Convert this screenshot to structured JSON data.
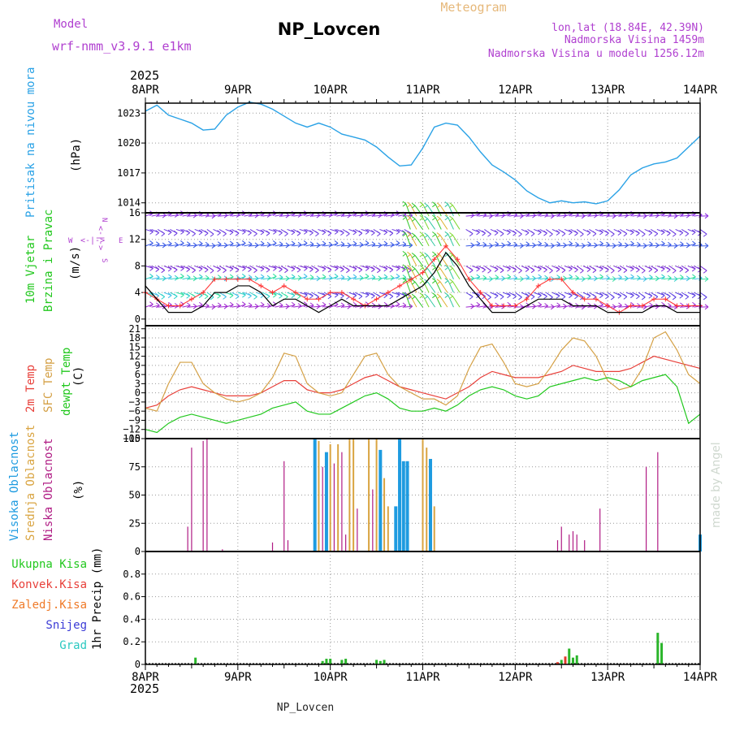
{
  "header": {
    "model_label": "Model",
    "model_name": "wrf-nmm_v3.9.1 e1km",
    "station": "NP_Lovcen",
    "meteogram": "Meteogram",
    "lonlat": "lon,lat (18.84E, 42.39N)",
    "altitude": "Nadmorska Visina 1459m",
    "model_altitude": "Nadmorska Visina u modelu 1256.12m",
    "footer_station": "NP_Lovcen",
    "watermark": "made by Angel"
  },
  "time_axis": {
    "year": "2025",
    "days": [
      "8APR",
      "9APR",
      "10APR",
      "11APR",
      "12APR",
      "13APR",
      "14APR"
    ],
    "hours_total": 144
  },
  "colors": {
    "pressure": "#2aa2e6",
    "temp2m": "#e8403a",
    "sfc_temp": "#d4a045",
    "dewpt": "#22c81e",
    "cloud_high": "#1e9be0",
    "cloud_mid": "#d9a441",
    "cloud_low": "#b01c84",
    "precip_total": "#2ab52a",
    "precip_conv": "#e03a2a",
    "precip_frz": "#ef7a28",
    "precip_snow": "#3b3bd6",
    "precip_hail": "#2ac8c0",
    "wind_gust": "#ff3030",
    "wind_speed": "#000000",
    "label_purple": "#b040d0",
    "grid": "#9a9a9a"
  },
  "panels": {
    "pressure": {
      "labels": [
        "Pritisak na nivou mora",
        "(hPa)"
      ]
    },
    "wind": {
      "labels": [
        "10m Vjetar",
        "Brzina i Pravac",
        "(m/s)"
      ],
      "compass": {
        "n": "N",
        "s": "S",
        "e": "E",
        "w": "W",
        "arrow": "<-|->"
      }
    },
    "temp": {
      "labels": [
        "2m Temp",
        "SFC Temp",
        "dewpt Temp",
        "(C)"
      ]
    },
    "cloud": {
      "labels": [
        "Visoka Oblacnost",
        "Srednja Oblacnost",
        "Niska Oblacnost",
        "(%)"
      ]
    },
    "precip": {
      "labels": [
        "Ukupna Kisa",
        "Konvek.Kisa",
        "Zaledj.Kisa",
        "Snijeg",
        "Grad",
        "1hr Precip (mm)"
      ]
    }
  },
  "chart_data": [
    {
      "type": "line",
      "name": "pressure",
      "x_unit": "hours from 8APR 00",
      "ylim": [
        1013,
        1024
      ],
      "yticks": [
        1014,
        1017,
        1020,
        1023
      ],
      "x": [
        0,
        3,
        6,
        9,
        12,
        15,
        18,
        21,
        24,
        27,
        30,
        33,
        36,
        39,
        42,
        45,
        48,
        51,
        54,
        57,
        60,
        63,
        66,
        69,
        72,
        75,
        78,
        81,
        84,
        87,
        90,
        93,
        96,
        99,
        102,
        105,
        108,
        111,
        114,
        117,
        120,
        123,
        126,
        129,
        132,
        135,
        138,
        141,
        144
      ],
      "values": [
        1023.2,
        1023.8,
        1022.8,
        1022.4,
        1022.0,
        1021.3,
        1021.4,
        1022.8,
        1023.6,
        1024.1,
        1023.9,
        1023.4,
        1022.7,
        1022.0,
        1021.6,
        1022.0,
        1021.6,
        1020.9,
        1020.6,
        1020.3,
        1019.6,
        1018.6,
        1017.7,
        1017.8,
        1019.5,
        1021.6,
        1022.0,
        1021.8,
        1020.6,
        1019.1,
        1017.8,
        1017.1,
        1016.3,
        1015.2,
        1014.5,
        1014.0,
        1014.2,
        1014.0,
        1014.1,
        1013.9,
        1014.2,
        1015.3,
        1016.8,
        1017.5,
        1017.9,
        1018.1,
        1018.5,
        1019.6,
        1020.7
      ]
    },
    {
      "type": "line",
      "name": "wind",
      "x_unit": "hours from 8APR 00",
      "ylim": [
        -1,
        16
      ],
      "yticks": [
        0,
        4,
        8,
        12,
        16
      ],
      "x": [
        0,
        3,
        6,
        9,
        12,
        15,
        18,
        21,
        24,
        27,
        30,
        33,
        36,
        39,
        42,
        45,
        48,
        51,
        54,
        57,
        60,
        63,
        66,
        69,
        72,
        75,
        78,
        81,
        84,
        87,
        90,
        93,
        96,
        99,
        102,
        105,
        108,
        111,
        114,
        117,
        120,
        123,
        126,
        129,
        132,
        135,
        138,
        141,
        144
      ],
      "series": [
        {
          "name": "gust",
          "values": [
            4,
            3,
            2,
            2,
            3,
            4,
            6,
            6,
            6,
            6,
            5,
            4,
            5,
            4,
            3,
            3,
            4,
            4,
            3,
            2,
            3,
            4,
            5,
            6,
            7,
            9,
            11,
            9,
            6,
            4,
            2,
            2,
            2,
            3,
            5,
            6,
            6,
            4,
            3,
            3,
            2,
            1,
            2,
            2,
            3,
            3,
            2,
            2,
            2
          ]
        },
        {
          "name": "speed",
          "values": [
            5,
            3,
            1,
            1,
            1,
            2,
            4,
            4,
            5,
            5,
            4,
            2,
            3,
            3,
            2,
            1,
            2,
            3,
            2,
            2,
            2,
            2,
            3,
            4,
            5,
            7,
            10,
            8,
            5,
            3,
            1,
            1,
            1,
            2,
            3,
            3,
            3,
            2,
            2,
            2,
            1,
            1,
            1,
            1,
            2,
            2,
            1,
            1,
            1
          ]
        }
      ]
    },
    {
      "type": "line",
      "name": "temperature",
      "x_unit": "hours from 8APR 00",
      "ylim": [
        -15,
        22
      ],
      "yticks": [
        -15,
        -12,
        -9,
        -6,
        -3,
        0,
        3,
        6,
        9,
        12,
        15,
        18,
        21
      ],
      "x": [
        0,
        3,
        6,
        9,
        12,
        15,
        18,
        21,
        24,
        27,
        30,
        33,
        36,
        39,
        42,
        45,
        48,
        51,
        54,
        57,
        60,
        63,
        66,
        69,
        72,
        75,
        78,
        81,
        84,
        87,
        90,
        93,
        96,
        99,
        102,
        105,
        108,
        111,
        114,
        117,
        120,
        123,
        126,
        129,
        132,
        135,
        138,
        141,
        144
      ],
      "series": [
        {
          "name": "2m",
          "values": [
            -5,
            -4,
            -1,
            1,
            2,
            1,
            0,
            -1,
            -1,
            -1,
            0,
            2,
            4,
            4,
            1,
            0,
            0,
            1,
            3,
            5,
            6,
            4,
            2,
            1,
            0,
            -1,
            -2,
            0,
            2,
            5,
            7,
            6,
            5,
            5,
            5,
            6,
            7,
            9,
            8,
            7,
            7,
            7,
            8,
            10,
            12,
            11,
            10,
            9,
            8
          ]
        },
        {
          "name": "sfc",
          "values": [
            -5,
            -6,
            3,
            10,
            10,
            3,
            0,
            -2,
            -3,
            -2,
            0,
            5,
            13,
            12,
            3,
            0,
            -1,
            0,
            6,
            12,
            13,
            6,
            2,
            0,
            -2,
            -2,
            -4,
            -1,
            8,
            15,
            16,
            10,
            3,
            2,
            3,
            8,
            14,
            18,
            17,
            12,
            4,
            1,
            2,
            8,
            18,
            20,
            14,
            6,
            3
          ]
        },
        {
          "name": "dewpt",
          "values": [
            -12,
            -13,
            -10,
            -8,
            -7,
            -8,
            -9,
            -10,
            -9,
            -8,
            -7,
            -5,
            -4,
            -3,
            -6,
            -7,
            -7,
            -5,
            -3,
            -1,
            0,
            -2,
            -5,
            -6,
            -6,
            -5,
            -6,
            -4,
            -1,
            1,
            2,
            1,
            -1,
            -2,
            -1,
            2,
            3,
            4,
            5,
            4,
            5,
            4,
            2,
            4,
            5,
            6,
            2,
            -10,
            -7
          ]
        }
      ]
    },
    {
      "type": "bar",
      "name": "cloud cover",
      "x_unit": "hours from 8APR 00",
      "ylim": [
        0,
        100
      ],
      "yticks": [
        0,
        25,
        50,
        75,
        100
      ],
      "bars": [
        {
          "s": "low",
          "h": 11,
          "v": 22
        },
        {
          "s": "low",
          "h": 12,
          "v": 92
        },
        {
          "s": "low",
          "h": 15,
          "v": 98
        },
        {
          "s": "low",
          "h": 16,
          "v": 100
        },
        {
          "s": "low",
          "h": 20,
          "v": 2
        },
        {
          "s": "low",
          "h": 33,
          "v": 8
        },
        {
          "s": "low",
          "h": 36,
          "v": 80
        },
        {
          "s": "low",
          "h": 37,
          "v": 10
        },
        {
          "s": "high",
          "h": 44,
          "v": 100
        },
        {
          "s": "mid",
          "h": 45,
          "v": 98
        },
        {
          "s": "low",
          "h": 46,
          "v": 75
        },
        {
          "s": "high",
          "h": 47,
          "v": 88
        },
        {
          "s": "mid",
          "h": 48,
          "v": 95
        },
        {
          "s": "low",
          "h": 49,
          "v": 78
        },
        {
          "s": "mid",
          "h": 50,
          "v": 95
        },
        {
          "s": "low",
          "h": 51,
          "v": 88
        },
        {
          "s": "low",
          "h": 52,
          "v": 15
        },
        {
          "s": "mid",
          "h": 53,
          "v": 100
        },
        {
          "s": "mid",
          "h": 54,
          "v": 100
        },
        {
          "s": "low",
          "h": 55,
          "v": 38
        },
        {
          "s": "mid",
          "h": 58,
          "v": 100
        },
        {
          "s": "low",
          "h": 59,
          "v": 55
        },
        {
          "s": "mid",
          "h": 60,
          "v": 100
        },
        {
          "s": "high",
          "h": 61,
          "v": 90
        },
        {
          "s": "mid",
          "h": 62,
          "v": 65
        },
        {
          "s": "mid",
          "h": 63,
          "v": 40
        },
        {
          "s": "high",
          "h": 65,
          "v": 40
        },
        {
          "s": "high",
          "h": 66,
          "v": 100
        },
        {
          "s": "high",
          "h": 67,
          "v": 80
        },
        {
          "s": "high",
          "h": 68,
          "v": 80
        },
        {
          "s": "mid",
          "h": 72,
          "v": 100
        },
        {
          "s": "mid",
          "h": 73,
          "v": 92
        },
        {
          "s": "high",
          "h": 74,
          "v": 82
        },
        {
          "s": "mid",
          "h": 75,
          "v": 40
        },
        {
          "s": "low",
          "h": 107,
          "v": 10
        },
        {
          "s": "low",
          "h": 108,
          "v": 22
        },
        {
          "s": "low",
          "h": 110,
          "v": 15
        },
        {
          "s": "low",
          "h": 111,
          "v": 18
        },
        {
          "s": "low",
          "h": 112,
          "v": 15
        },
        {
          "s": "low",
          "h": 114,
          "v": 10
        },
        {
          "s": "low",
          "h": 118,
          "v": 38
        },
        {
          "s": "low",
          "h": 130,
          "v": 75
        },
        {
          "s": "low",
          "h": 133,
          "v": 88
        },
        {
          "s": "high",
          "h": 144,
          "v": 15
        }
      ]
    },
    {
      "type": "bar",
      "name": "1hr precipitation",
      "x_unit": "hours from 8APR 00",
      "ylim": [
        0,
        1
      ],
      "yticks": [
        0,
        0.2,
        0.4,
        0.6,
        0.8
      ],
      "bars": [
        {
          "s": "total",
          "h": 13,
          "v": 0.06
        },
        {
          "s": "total",
          "h": 46,
          "v": 0.03
        },
        {
          "s": "total",
          "h": 47,
          "v": 0.05
        },
        {
          "s": "total",
          "h": 48,
          "v": 0.05
        },
        {
          "s": "total",
          "h": 51,
          "v": 0.04
        },
        {
          "s": "total",
          "h": 52,
          "v": 0.05
        },
        {
          "s": "total",
          "h": 60,
          "v": 0.04
        },
        {
          "s": "total",
          "h": 61,
          "v": 0.03
        },
        {
          "s": "total",
          "h": 62,
          "v": 0.04
        },
        {
          "s": "conv",
          "h": 107,
          "v": 0.02
        },
        {
          "s": "total",
          "h": 108,
          "v": 0.04
        },
        {
          "s": "conv",
          "h": 109,
          "v": 0.07
        },
        {
          "s": "total",
          "h": 110,
          "v": 0.14
        },
        {
          "s": "total",
          "h": 111,
          "v": 0.06
        },
        {
          "s": "total",
          "h": 112,
          "v": 0.08
        },
        {
          "s": "total",
          "h": 133,
          "v": 0.28
        },
        {
          "s": "total",
          "h": 134,
          "v": 0.19
        }
      ]
    }
  ]
}
